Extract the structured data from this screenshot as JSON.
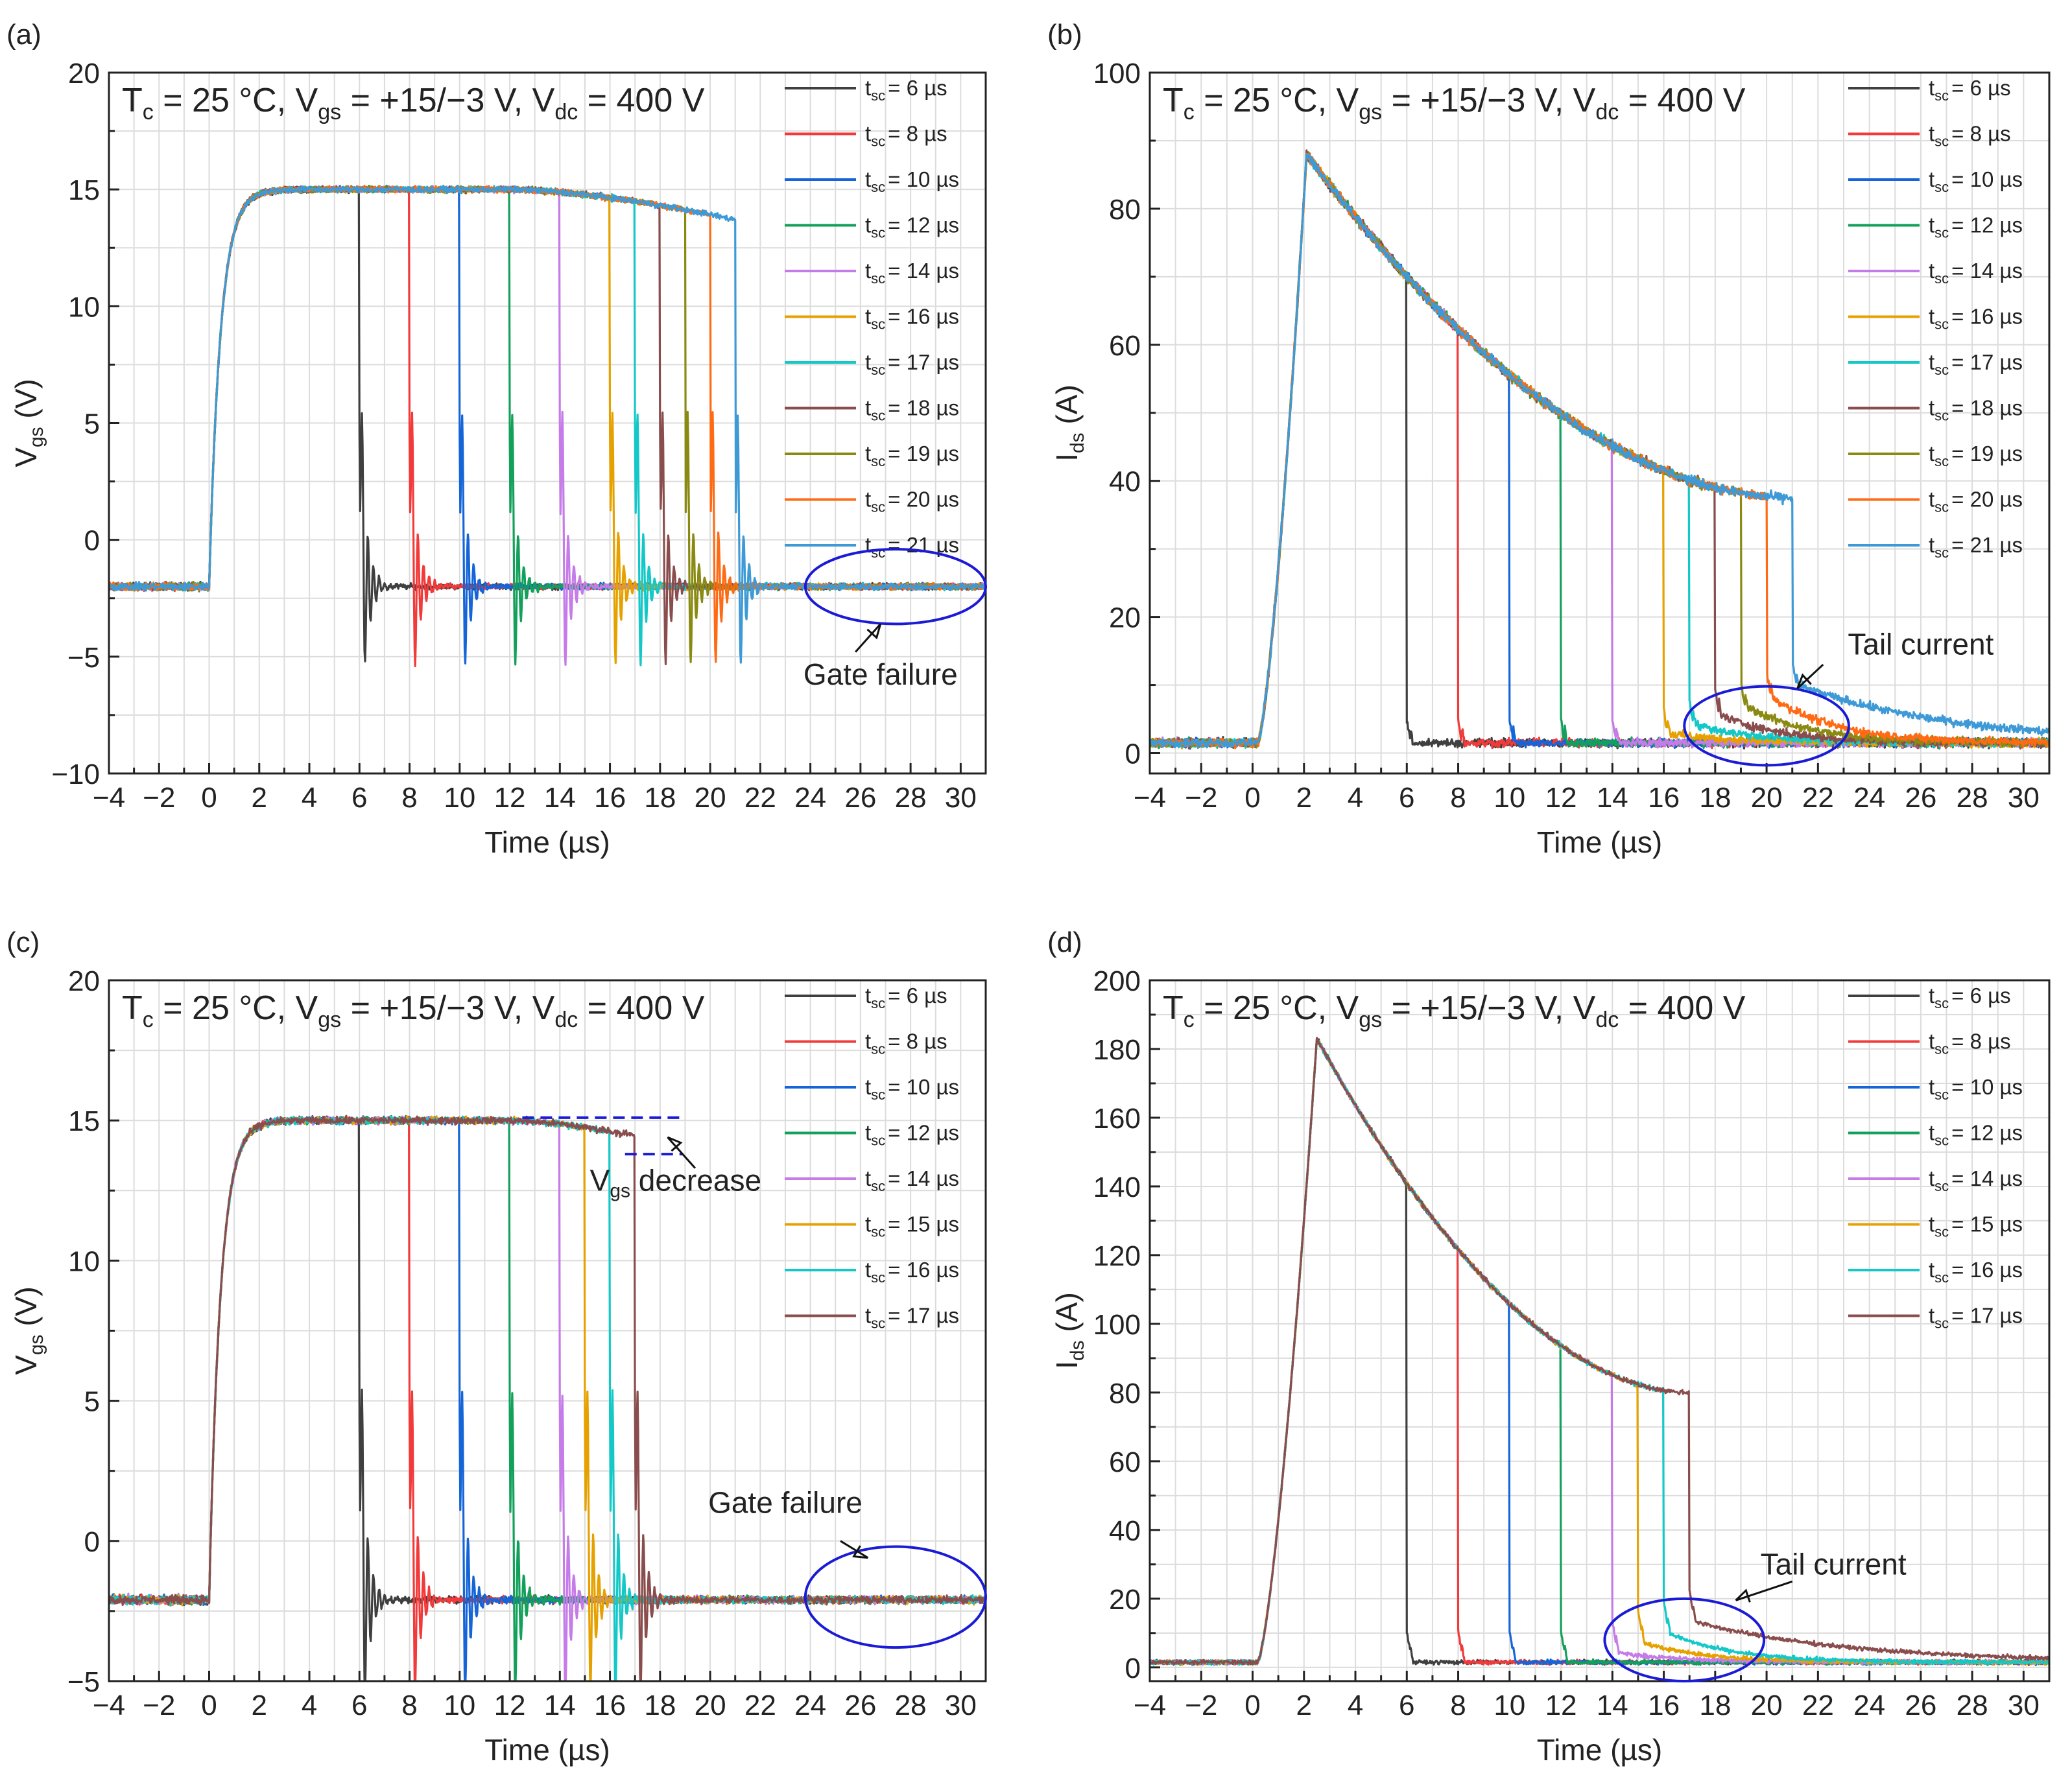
{
  "figure": {
    "series_colors": {
      "6": "#3f3f3f",
      "8": "#f23a3a",
      "10": "#1565d8",
      "12": "#12a05a",
      "14": "#c57be8",
      "15": "#e6a100",
      "16": "#e6a100",
      "17": "#14c8c8",
      "18": "#8a4d4d",
      "19": "#8a8a12",
      "20": "#ff6a14",
      "21": "#3e9ad6",
      "c16": "#14c8c8",
      "c17": "#8a4d4d"
    },
    "annotation_color": "#1b1bd6"
  },
  "chart_data": [
    {
      "id": "a",
      "panel_label": "(a)",
      "type": "line",
      "title": "Tc = 25 °C, Vgs = +15/−3 V, Vdc = 400 V",
      "title_parts": {
        "t1": "T",
        "s1": "c",
        "t2": " = 25 °C, V",
        "s2": "gs",
        "t3": " = +15/−3 V, V",
        "s3": "dc",
        "t4": " = 400 V"
      },
      "xlabel": "Time (µs)",
      "ylabel": {
        "main": "V",
        "sub": "gs",
        "unit": " (V)"
      },
      "xlim": [
        -4,
        31
      ],
      "ylim": [
        -10,
        20
      ],
      "xticks": [
        -4,
        -2,
        0,
        2,
        4,
        6,
        8,
        10,
        12,
        14,
        16,
        18,
        20,
        22,
        24,
        26,
        28,
        30
      ],
      "xtick_labels": [
        "−4",
        "−2",
        "0",
        "2",
        "4",
        "6",
        "8",
        "10",
        "12",
        "14",
        "16",
        "18",
        "20",
        "22",
        "24",
        "26",
        "28",
        "30"
      ],
      "yticks": [
        -10,
        -5,
        0,
        5,
        10,
        15,
        20
      ],
      "ytick_labels": [
        "−10",
        "−5",
        "0",
        "5",
        "10",
        "15",
        "20"
      ],
      "legend_position": "top-right",
      "series": [
        {
          "tsc": 6,
          "label": "= 6 µs"
        },
        {
          "tsc": 8,
          "label": "= 8 µs"
        },
        {
          "tsc": 10,
          "label": "= 10 µs"
        },
        {
          "tsc": 12,
          "label": "= 12 µs"
        },
        {
          "tsc": 14,
          "label": "= 14 µs"
        },
        {
          "tsc": 16,
          "label": "= 16 µs"
        },
        {
          "tsc": 17,
          "label": "= 17 µs"
        },
        {
          "tsc": 18,
          "label": "= 18 µs"
        },
        {
          "tsc": 19,
          "label": "= 19 µs"
        },
        {
          "tsc": 20,
          "label": "= 20 µs"
        },
        {
          "tsc": 21,
          "label": "= 21 µs"
        }
      ],
      "waveform": {
        "kind": "vgs",
        "low": -2.0,
        "high": 15.0,
        "droop": 1.3,
        "rise_tau": 0.45
      },
      "annotations": [
        {
          "text": "Gate failure",
          "ellipse_center": [
            27.4,
            -2.0
          ],
          "ellipse_radius": [
            3.6,
            1.6
          ],
          "text_at": [
            26.8,
            -6.2
          ],
          "arrow_from": [
            25.8,
            -4.8
          ],
          "arrow_to": [
            26.8,
            -3.6
          ]
        }
      ]
    },
    {
      "id": "b",
      "panel_label": "(b)",
      "type": "line",
      "title": "Tc = 25 °C, Vgs = +15/−3 V, Vdc = 400 V",
      "title_parts": {
        "t1": "T",
        "s1": "c",
        "t2": " = 25 °C, V",
        "s2": "gs",
        "t3": " = +15/−3 V, V",
        "s3": "dc",
        "t4": " = 400 V"
      },
      "xlabel": "Time (µs)",
      "ylabel": {
        "main": "I",
        "sub": "ds",
        "unit": " (A)"
      },
      "xlim": [
        -4,
        31
      ],
      "ylim": [
        -3,
        100
      ],
      "xticks": [
        -4,
        -2,
        0,
        2,
        4,
        6,
        8,
        10,
        12,
        14,
        16,
        18,
        20,
        22,
        24,
        26,
        28,
        30
      ],
      "xtick_labels": [
        "−4",
        "−2",
        "0",
        "2",
        "4",
        "6",
        "8",
        "10",
        "12",
        "14",
        "16",
        "18",
        "20",
        "22",
        "24",
        "26",
        "28",
        "30"
      ],
      "yticks": [
        0,
        20,
        40,
        60,
        80,
        100
      ],
      "ytick_labels": [
        "0",
        "20",
        "40",
        "60",
        "80",
        "100"
      ],
      "legend_position": "top-right",
      "series": [
        {
          "tsc": 6,
          "label": "= 6 µs"
        },
        {
          "tsc": 8,
          "label": "= 8 µs"
        },
        {
          "tsc": 10,
          "label": "= 10 µs"
        },
        {
          "tsc": 12,
          "label": "= 12 µs"
        },
        {
          "tsc": 14,
          "label": "= 14 µs"
        },
        {
          "tsc": 16,
          "label": "= 16 µs"
        },
        {
          "tsc": 17,
          "label": "= 17 µs"
        },
        {
          "tsc": 18,
          "label": "= 18 µs"
        },
        {
          "tsc": 19,
          "label": "= 19 µs"
        },
        {
          "tsc": 20,
          "label": "= 20 µs"
        },
        {
          "tsc": 21,
          "label": "= 21 µs"
        }
      ],
      "waveform": {
        "kind": "ids",
        "peak": 88,
        "t_peak": 2.1,
        "final": 37.5,
        "t_final": 21,
        "tail_start": 16
      },
      "annotations": [
        {
          "text": "Tail current",
          "ellipse_center": [
            20.0,
            4.0
          ],
          "ellipse_radius": [
            3.2,
            5.8
          ],
          "text_at": [
            26.0,
            14.5
          ],
          "arrow_from": [
            22.2,
            13.0
          ],
          "arrow_to": [
            21.2,
            9.5
          ]
        }
      ]
    },
    {
      "id": "c",
      "panel_label": "(c)",
      "type": "line",
      "title": "Tc = 25 °C, Vgs = +15/−3 V, Vdc = 400 V",
      "title_parts": {
        "t1": "T",
        "s1": "c",
        "t2": " = 25 °C, V",
        "s2": "gs",
        "t3": " = +15/−3 V, V",
        "s3": "dc",
        "t4": " = 400 V"
      },
      "xlabel": "Time (µs)",
      "ylabel": {
        "main": "V",
        "sub": "gs",
        "unit": " (V)"
      },
      "xlim": [
        -4,
        31
      ],
      "ylim": [
        -5,
        20
      ],
      "xticks": [
        -4,
        -2,
        0,
        2,
        4,
        6,
        8,
        10,
        12,
        14,
        16,
        18,
        20,
        22,
        24,
        26,
        28,
        30
      ],
      "xtick_labels": [
        "−4",
        "−2",
        "0",
        "2",
        "4",
        "6",
        "8",
        "10",
        "12",
        "14",
        "16",
        "18",
        "20",
        "22",
        "24",
        "26",
        "28",
        "30"
      ],
      "yticks": [
        -5,
        0,
        5,
        10,
        15,
        20
      ],
      "ytick_labels": [
        "−5",
        "0",
        "5",
        "10",
        "15",
        "20"
      ],
      "legend_position": "top-right",
      "series": [
        {
          "tsc": 6,
          "label": "= 6 µs",
          "color_key": "6"
        },
        {
          "tsc": 8,
          "label": "= 8 µs",
          "color_key": "8"
        },
        {
          "tsc": 10,
          "label": "= 10 µs",
          "color_key": "10"
        },
        {
          "tsc": 12,
          "label": "= 12 µs",
          "color_key": "12"
        },
        {
          "tsc": 14,
          "label": "= 14 µs",
          "color_key": "14"
        },
        {
          "tsc": 15,
          "label": "= 15 µs",
          "color_key": "15"
        },
        {
          "tsc": 16,
          "label": "= 16 µs",
          "color_key": "c16"
        },
        {
          "tsc": 17,
          "label": "= 17 µs",
          "color_key": "c17"
        }
      ],
      "waveform": {
        "kind": "vgs",
        "low": -2.1,
        "high": 15.0,
        "droop": 1.4,
        "rise_tau": 0.45
      },
      "annotations": [
        {
          "text": "Gate failure",
          "ellipse_center": [
            27.4,
            -2.0
          ],
          "ellipse_radius": [
            3.6,
            1.8
          ],
          "text_at": [
            23.0,
            1.0
          ],
          "arrow_from": [
            25.2,
            0.0
          ],
          "arrow_to": [
            26.3,
            -0.6
          ]
        },
        {
          "text_main": "V",
          "text_sub": "gs",
          "text_rest": " decrease",
          "dashes": [
            [
              12.5,
              15.1,
              18.9,
              15.1
            ],
            [
              16.6,
              13.8,
              18.9,
              13.8
            ]
          ],
          "text_at": [
            15.2,
            12.5
          ],
          "arrow_from": [
            19.4,
            13.3
          ],
          "arrow_to": [
            18.3,
            14.4
          ]
        }
      ]
    },
    {
      "id": "d",
      "panel_label": "(d)",
      "type": "line",
      "title": "Tc = 25 °C, Vgs = +15/−3 V, Vdc = 400 V",
      "title_parts": {
        "t1": "T",
        "s1": "c",
        "t2": " = 25 °C, V",
        "s2": "gs",
        "t3": " = +15/−3 V, V",
        "s3": "dc",
        "t4": " = 400 V"
      },
      "xlabel": "Time (µs)",
      "ylabel": {
        "main": "I",
        "sub": "ds",
        "unit": " (A)"
      },
      "xlim": [
        -4,
        31
      ],
      "ylim": [
        -4,
        200
      ],
      "xticks": [
        -4,
        -2,
        0,
        2,
        4,
        6,
        8,
        10,
        12,
        14,
        16,
        18,
        20,
        22,
        24,
        26,
        28,
        30
      ],
      "xtick_labels": [
        "−4",
        "−2",
        "0",
        "2",
        "4",
        "6",
        "8",
        "10",
        "12",
        "14",
        "16",
        "18",
        "20",
        "22",
        "24",
        "26",
        "28",
        "30"
      ],
      "yticks": [
        0,
        20,
        40,
        60,
        80,
        100,
        120,
        140,
        160,
        180,
        200
      ],
      "ytick_labels": [
        "0",
        "20",
        "40",
        "60",
        "80",
        "100",
        "120",
        "140",
        "160",
        "180",
        "200"
      ],
      "legend_position": "top-right",
      "series": [
        {
          "tsc": 6,
          "label": "= 6 µs",
          "color_key": "6"
        },
        {
          "tsc": 8,
          "label": "= 8 µs",
          "color_key": "8"
        },
        {
          "tsc": 10,
          "label": "= 10 µs",
          "color_key": "10"
        },
        {
          "tsc": 12,
          "label": "= 12 µs",
          "color_key": "12"
        },
        {
          "tsc": 14,
          "label": "= 14 µs",
          "color_key": "14"
        },
        {
          "tsc": 15,
          "label": "= 15 µs",
          "color_key": "15"
        },
        {
          "tsc": 16,
          "label": "= 16 µs",
          "color_key": "c16"
        },
        {
          "tsc": 17,
          "label": "= 17 µs",
          "color_key": "c17"
        }
      ],
      "waveform": {
        "kind": "ids",
        "peak": 183,
        "t_peak": 2.5,
        "final": 80,
        "t_final": 17,
        "tail_start": 14
      },
      "annotations": [
        {
          "text": "Tail current",
          "ellipse_center": [
            16.8,
            8.0
          ],
          "ellipse_radius": [
            3.1,
            12.0
          ],
          "text_at": [
            22.6,
            27.0
          ],
          "arrow_from": [
            21.0,
            25.0
          ],
          "arrow_to": [
            18.8,
            19.5
          ]
        }
      ]
    }
  ]
}
